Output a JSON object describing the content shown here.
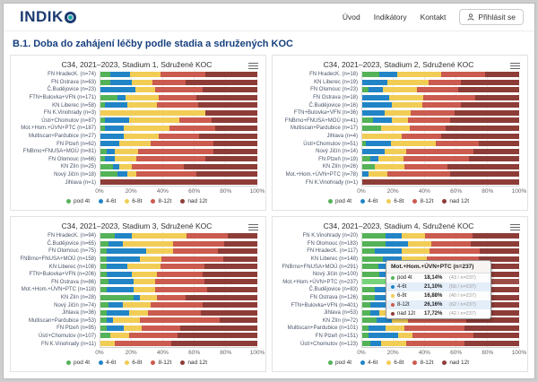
{
  "header": {
    "logo_text": "INDIK",
    "logo_o": "O",
    "nav": [
      {
        "label": "Úvod"
      },
      {
        "label": "Indikátory"
      },
      {
        "label": "Kontakt"
      }
    ],
    "login_label": "Přihlásit se"
  },
  "page_title": "B.1. Doba do zahájení léčby podle stadia a sdružených KOC",
  "axis_ticks": [
    "0%",
    "20%",
    "40%",
    "60%",
    "80%",
    "100%"
  ],
  "palette": {
    "pod_4t": "#54b257",
    "t4_6": "#2184c6",
    "t6_8": "#f1cd55",
    "t8_12": "#cb5a4f",
    "nad_12t": "#8d3c37"
  },
  "chart_data": [
    {
      "type": "bar",
      "stacked": true,
      "title": "C34, 2021–2023, Stadium 1, Sdružené KOC",
      "xlim": [
        0,
        100
      ],
      "legend_position": "bottom",
      "categories": [
        "FN HradecK. (n=74)",
        "FN Ostrava (n=63)",
        "Č.Budějovice (n=23)",
        "FTN+Bulovka+VFN (n=171)",
        "KN Liberec (n=58)",
        "FN K.Vinohrady (n=3)",
        "Ústí+Chomutov (n=87)",
        "Mot.+Hom.+ÚVN+PTC (n=187)",
        "Multiscan+Pardubice (n=27)",
        "FN Plzeň (n=62)",
        "FNBrno+FNUSA+MOÚ (n=81)",
        "FN Olomouc (n=66)",
        "KN Zlín (n=25)",
        "Nový Jičín (n=18)",
        "Jihlava (n=1)"
      ],
      "series": [
        {
          "name": "pod 4t",
          "color": "#54b257",
          "values": [
            6,
            6,
            0,
            11,
            3,
            0,
            3,
            3,
            0,
            0,
            4,
            3,
            8,
            11,
            0
          ]
        },
        {
          "name": "4-6t",
          "color": "#2184c6",
          "values": [
            13,
            14,
            22,
            5,
            14,
            0,
            15,
            12,
            15,
            12,
            5,
            6,
            4,
            6,
            0
          ]
        },
        {
          "name": "6-8t",
          "color": "#f1cd55",
          "values": [
            19,
            13,
            13,
            21,
            19,
            67,
            32,
            29,
            22,
            20,
            15,
            14,
            8,
            6,
            0
          ]
        },
        {
          "name": "8-12t",
          "color": "#cb5a4f",
          "values": [
            29,
            21,
            30,
            24,
            26,
            0,
            21,
            29,
            26,
            40,
            48,
            44,
            33,
            38,
            0
          ]
        },
        {
          "name": "nad 12t",
          "color": "#8d3c37",
          "values": [
            33,
            46,
            35,
            39,
            38,
            33,
            29,
            27,
            37,
            28,
            28,
            33,
            47,
            39,
            100
          ]
        }
      ]
    },
    {
      "type": "bar",
      "stacked": true,
      "title": "C34, 2021–2023, Stadium 2, Sdružené KOC",
      "xlim": [
        0,
        100
      ],
      "legend_position": "bottom",
      "categories": [
        "FN HradecK. (n=18)",
        "KN Liberec (n=19)",
        "FN Olomouc (n=23)",
        "FN Ostrava (n=18)",
        "Č.Budějovice (n=16)",
        "FTN+Bulovka+VFN (n=36)",
        "FNBrno+FNUSA+MOÚ (n=41)",
        "Multiscan+Pardubice (n=17)",
        "Jihlava (n=4)",
        "Ústí+Chomutov (n=51)",
        "Nový Jičín (n=14)",
        "FN Plzeň (n=19)",
        "KN Zlín (n=26)",
        "Mot.+Hom.+ÚVN+PTC (n=78)",
        "FN K.Vinohrady (n=1)"
      ],
      "series": [
        {
          "name": "pod 4t",
          "color": "#54b257",
          "values": [
            11,
            0,
            4,
            0,
            0,
            0,
            7,
            12,
            0,
            2,
            0,
            5,
            8,
            0,
            0
          ]
        },
        {
          "name": "4-6t",
          "color": "#2184c6",
          "values": [
            11,
            16,
            9,
            17,
            19,
            14,
            12,
            0,
            0,
            16,
            14,
            5,
            0,
            4,
            0
          ]
        },
        {
          "name": "6-8t",
          "color": "#f1cd55",
          "values": [
            28,
            26,
            22,
            22,
            19,
            17,
            10,
            18,
            25,
            29,
            14,
            16,
            19,
            12,
            0
          ]
        },
        {
          "name": "8-12t",
          "color": "#cb5a4f",
          "values": [
            28,
            21,
            26,
            33,
            25,
            28,
            27,
            23,
            25,
            27,
            43,
            42,
            27,
            40,
            0
          ]
        },
        {
          "name": "nad 12t",
          "color": "#8d3c37",
          "values": [
            22,
            37,
            39,
            28,
            37,
            41,
            44,
            47,
            50,
            26,
            29,
            32,
            46,
            44,
            100
          ]
        }
      ]
    },
    {
      "type": "bar",
      "stacked": true,
      "title": "C34, 2021–2023, Stadium 3, Sdružené KOC",
      "xlim": [
        0,
        100
      ],
      "legend_position": "bottom",
      "categories": [
        "FN HradecK. (n=94)",
        "Č.Budějovice (n=65)",
        "FN Olomouc (n=75)",
        "FNBrno+FNUSA+MOÚ (n=158)",
        "KN Liberec (n=108)",
        "FTN+Bulovka+VFN (n=206)",
        "FN Ostrava (n=86)",
        "Mot.+Hom.+ÚVN+PTC (n=118)",
        "KN Zlín (n=28)",
        "Nový Jičín (n=74)",
        "Jihlava (n=36)",
        "Multiscan+Pardubice (n=53)",
        "FN Plzeň (n=95)",
        "Ústí+Chomutov (n=107)",
        "FN K.Vinohrady (n=11)"
      ],
      "series": [
        {
          "name": "pod 4t",
          "color": "#54b257",
          "values": [
            9,
            5,
            4,
            4,
            4,
            4,
            5,
            4,
            21,
            5,
            4,
            4,
            4,
            6,
            0
          ]
        },
        {
          "name": "4-6t",
          "color": "#2184c6",
          "values": [
            11,
            9,
            25,
            21,
            13,
            16,
            16,
            17,
            4,
            9,
            14,
            4,
            11,
            0,
            0
          ]
        },
        {
          "name": "6-8t",
          "color": "#f1cd55",
          "values": [
            35,
            32,
            17,
            14,
            21,
            16,
            14,
            14,
            11,
            18,
            12,
            17,
            11,
            12,
            9
          ]
        },
        {
          "name": "8-12t",
          "color": "#cb5a4f",
          "values": [
            26,
            33,
            29,
            39,
            28,
            29,
            31,
            33,
            18,
            33,
            34,
            51,
            25,
            31,
            36
          ]
        },
        {
          "name": "nad 12t",
          "color": "#8d3c37",
          "values": [
            19,
            21,
            25,
            22,
            34,
            35,
            34,
            32,
            46,
            35,
            36,
            24,
            49,
            51,
            55
          ]
        }
      ]
    },
    {
      "type": "bar",
      "stacked": true,
      "title": "C34, 2021–2023, Stadium 4, Sdružené KOC",
      "xlim": [
        0,
        100
      ],
      "legend_position": "bottom",
      "categories": [
        "FN K.Vinohrady (n=20)",
        "FN Olomouc (n=183)",
        "FN HradecK. (n=117)",
        "KN Liberec (n=148)",
        "FNBrno+FNUSA+MOÚ (n=291)",
        "Nový Jičín (n=100)",
        "Mot.+Hom.+ÚVN+PTC (n=237)",
        "Č.Budějovice (n=83)",
        "FN Ostrava (n=126)",
        "FTN+Bulovka+VFN (n=401)",
        "Jihlava (n=53)",
        "KN Zlín (n=72)",
        "Multiscan+Pardubice (n=101)",
        "FN Plzeň (n=151)",
        "Ústí+Chomutov (n=123)"
      ],
      "series": [
        {
          "name": "pod 4t",
          "color": "#54b257",
          "values": [
            15,
            15,
            8,
            13,
            10,
            11,
            18.14,
            8,
            8,
            5,
            5,
            9,
            4,
            4,
            5
          ]
        },
        {
          "name": "4-6t",
          "color": "#2184c6",
          "values": [
            10,
            14,
            17,
            12,
            15,
            14,
            21.1,
            14,
            10,
            12,
            6,
            10,
            11,
            19,
            7
          ]
        },
        {
          "name": "6-8t",
          "color": "#f1cd55",
          "values": [
            15,
            15,
            18,
            16,
            18,
            16,
            16.88,
            18,
            15,
            17,
            12,
            10,
            12,
            9,
            16
          ]
        },
        {
          "name": "8-12t",
          "color": "#cb5a4f",
          "values": [
            30,
            25,
            32,
            33,
            36,
            36,
            26.16,
            36,
            45,
            38,
            38,
            37,
            38,
            39,
            37
          ]
        },
        {
          "name": "nad 12t",
          "color": "#8d3c37",
          "values": [
            30,
            31,
            25,
            26,
            21,
            23,
            17.72,
            24,
            22,
            28,
            39,
            34,
            35,
            29,
            35
          ]
        }
      ]
    }
  ],
  "tooltip": {
    "chart_index": 3,
    "row_index": 6,
    "title": "Mot.+Hom.+ÚVN+PTC (n=237)",
    "rows": [
      {
        "label": "pod 4t",
        "pct": "18,14%",
        "detail": "(43 / n=237)",
        "color": "#54b257"
      },
      {
        "label": "4-6t",
        "pct": "21,10%",
        "detail": "(50 / n=237)",
        "color": "#2184c6"
      },
      {
        "label": "6-8t",
        "pct": "16,88%",
        "detail": "(40 / n=237)",
        "color": "#f1cd55"
      },
      {
        "label": "8-12t",
        "pct": "26,16%",
        "detail": "(62 / n=237)",
        "color": "#cb5a4f"
      },
      {
        "label": "nad 12t",
        "pct": "17,72%",
        "detail": "(42 / n=237)",
        "color": "#8d3c37"
      }
    ]
  }
}
